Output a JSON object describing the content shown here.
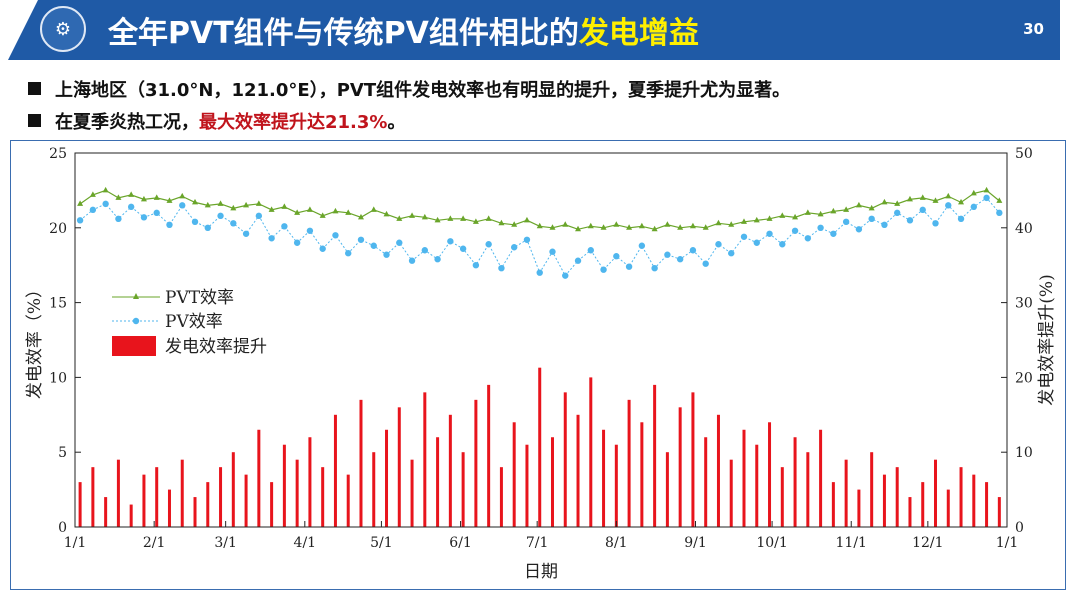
{
  "header": {
    "title_main": "全年PVT组件与传统PV组件相比的",
    "title_highlight": "发电增益",
    "page_number": "30",
    "logo_icon": "university-seal-icon"
  },
  "bullets": [
    {
      "text": "上海地区（31.0°N，121.0°E），PVT组件发电效率也有明显的提升，夏季提升尤为显著。"
    },
    {
      "text": "在夏季炎热工况，",
      "highlight": "最大效率提升达21.3%",
      "suffix": "。"
    }
  ],
  "colors": {
    "banner": "#1f5aa6",
    "title_highlight": "#ffef00",
    "bullet_highlight": "#c0141c",
    "pvt": "#6aa52a",
    "pv": "#4fb6ee",
    "gain": "#e8141c"
  },
  "chart_data": {
    "type": "line+bar",
    "xlabel": "日期",
    "ylabel_left": "发电效率（%）",
    "ylabel_right": "发电效率提升(%)",
    "x_ticks": [
      "1/1",
      "2/1",
      "3/1",
      "4/1",
      "5/1",
      "6/1",
      "7/1",
      "8/1",
      "9/1",
      "10/1",
      "11/1",
      "12/1",
      "1/1"
    ],
    "ylim_left": [
      0,
      25
    ],
    "yticks_left": [
      0,
      5,
      10,
      15,
      20,
      25
    ],
    "ylim_right": [
      0,
      50
    ],
    "yticks_right": [
      0,
      10,
      20,
      30,
      40,
      50
    ],
    "x_day_step": 5,
    "legend_position": "center-left",
    "series": [
      {
        "name": "PVT效率",
        "axis": "left",
        "style": "line-triangle",
        "values": [
          21.6,
          22.2,
          22.5,
          22.0,
          22.2,
          21.9,
          22.0,
          21.8,
          22.1,
          21.7,
          21.5,
          21.6,
          21.3,
          21.5,
          21.6,
          21.2,
          21.4,
          21.0,
          21.2,
          20.8,
          21.1,
          21.0,
          20.7,
          21.2,
          20.9,
          20.6,
          20.8,
          20.7,
          20.5,
          20.6,
          20.6,
          20.4,
          20.6,
          20.3,
          20.2,
          20.5,
          20.1,
          20.0,
          20.2,
          19.9,
          20.1,
          20.0,
          20.2,
          20.0,
          20.1,
          19.9,
          20.2,
          20.0,
          20.1,
          20.0,
          20.3,
          20.2,
          20.4,
          20.5,
          20.6,
          20.8,
          20.7,
          21.0,
          20.9,
          21.1,
          21.2,
          21.5,
          21.3,
          21.7,
          21.6,
          21.9,
          22.0,
          21.8,
          22.1,
          21.7,
          22.3,
          22.5,
          21.8
        ]
      },
      {
        "name": "PV效率",
        "axis": "left",
        "style": "dashed-circle",
        "values": [
          20.5,
          21.2,
          21.6,
          20.6,
          21.4,
          20.7,
          21.0,
          20.2,
          21.5,
          20.4,
          20.0,
          20.8,
          20.3,
          19.6,
          20.8,
          19.3,
          20.1,
          19.0,
          19.8,
          18.6,
          19.5,
          18.3,
          19.2,
          18.8,
          18.2,
          19.0,
          17.8,
          18.5,
          17.9,
          19.1,
          18.6,
          17.5,
          18.9,
          17.3,
          18.7,
          19.2,
          17.0,
          18.4,
          16.8,
          17.8,
          18.5,
          17.2,
          18.1,
          17.4,
          18.8,
          17.3,
          18.2,
          17.9,
          18.5,
          17.6,
          18.9,
          18.3,
          19.4,
          19.0,
          19.6,
          18.9,
          19.8,
          19.3,
          20.0,
          19.6,
          20.4,
          19.9,
          20.6,
          20.2,
          21.0,
          20.5,
          21.2,
          20.3,
          21.5,
          20.6,
          21.4,
          22.0,
          21.0
        ]
      },
      {
        "name": "发电效率提升",
        "axis": "right",
        "style": "bar",
        "values": [
          6,
          8,
          4,
          9,
          3,
          7,
          8,
          5,
          9,
          4,
          6,
          8,
          10,
          7,
          13,
          6,
          11,
          9,
          12,
          8,
          15,
          7,
          17,
          10,
          13,
          16,
          9,
          18,
          12,
          15,
          10,
          17,
          19,
          8,
          14,
          11,
          21.3,
          12,
          18,
          15,
          20,
          13,
          11,
          17,
          14,
          19,
          10,
          16,
          18,
          12,
          15,
          9,
          13,
          11,
          14,
          8,
          12,
          10,
          13,
          6,
          9,
          5,
          10,
          7,
          8,
          4,
          6,
          9,
          5,
          8,
          7,
          6,
          4
        ]
      }
    ]
  }
}
